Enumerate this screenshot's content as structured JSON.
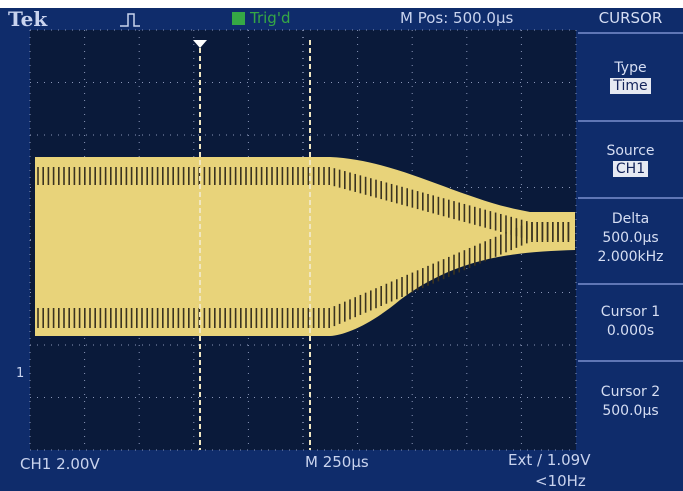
{
  "header": {
    "brand": "Tek",
    "status": "Trig'd",
    "position": "M Pos: 500.0µs"
  },
  "menu": {
    "title": "CURSOR",
    "items": [
      {
        "label": "Type",
        "value": "Time"
      },
      {
        "label": "Source",
        "value": "CH1"
      },
      {
        "label": "Delta",
        "values": [
          "500.0µs",
          "2.000kHz"
        ]
      },
      {
        "label": "Cursor 1",
        "value": "0.000s"
      },
      {
        "label": "Cursor 2",
        "value": "500.0µs"
      }
    ]
  },
  "footer": {
    "channel": "CH1 2.00V",
    "timebase": "M 250µs",
    "trigger": "Ext / 1.09V",
    "frequency": "<10Hz"
  },
  "markers": {
    "ground": "1"
  }
}
